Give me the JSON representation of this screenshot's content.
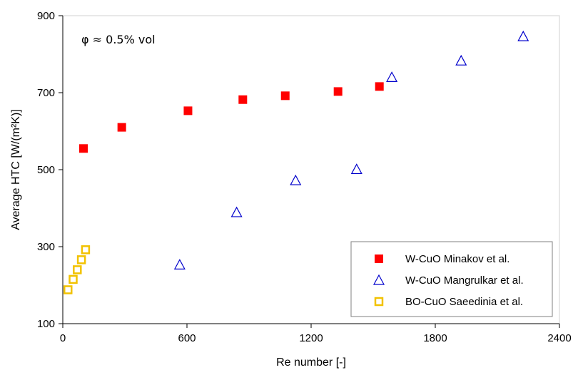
{
  "chart_data": {
    "type": "scatter",
    "title": "",
    "xlabel": "Re number [-]",
    "ylabel": "Average HTC [W/(m²K)]",
    "xlim": [
      0,
      2400
    ],
    "ylim": [
      100,
      900
    ],
    "xticks": [
      "0",
      "600",
      "1200",
      "1800",
      "2400"
    ],
    "yticks": [
      "100",
      "300",
      "500",
      "700",
      "900"
    ],
    "annotation": "φ ≈ 0.5% vol",
    "legend_position": "bottom-right",
    "grid": false,
    "series": [
      {
        "name": "W-CuO Minakov et al.",
        "marker": "filled-square",
        "color": "#ff0000",
        "points": [
          [
            100,
            555
          ],
          [
            285,
            610
          ],
          [
            605,
            653
          ],
          [
            870,
            682
          ],
          [
            1075,
            692
          ],
          [
            1330,
            703
          ],
          [
            1530,
            716
          ]
        ]
      },
      {
        "name": "W-CuO Mangrulkar et al.",
        "marker": "open-triangle",
        "color": "#0000cc",
        "points": [
          [
            565,
            253
          ],
          [
            840,
            389
          ],
          [
            1125,
            472
          ],
          [
            1420,
            501
          ],
          [
            1590,
            740
          ],
          [
            1925,
            783
          ],
          [
            2225,
            846
          ]
        ]
      },
      {
        "name": "BO-CuO Saeedinia et al.",
        "marker": "open-square",
        "color": "#f2c200",
        "points": [
          [
            25,
            188
          ],
          [
            50,
            215
          ],
          [
            70,
            240
          ],
          [
            90,
            266
          ],
          [
            110,
            292
          ]
        ]
      }
    ]
  }
}
